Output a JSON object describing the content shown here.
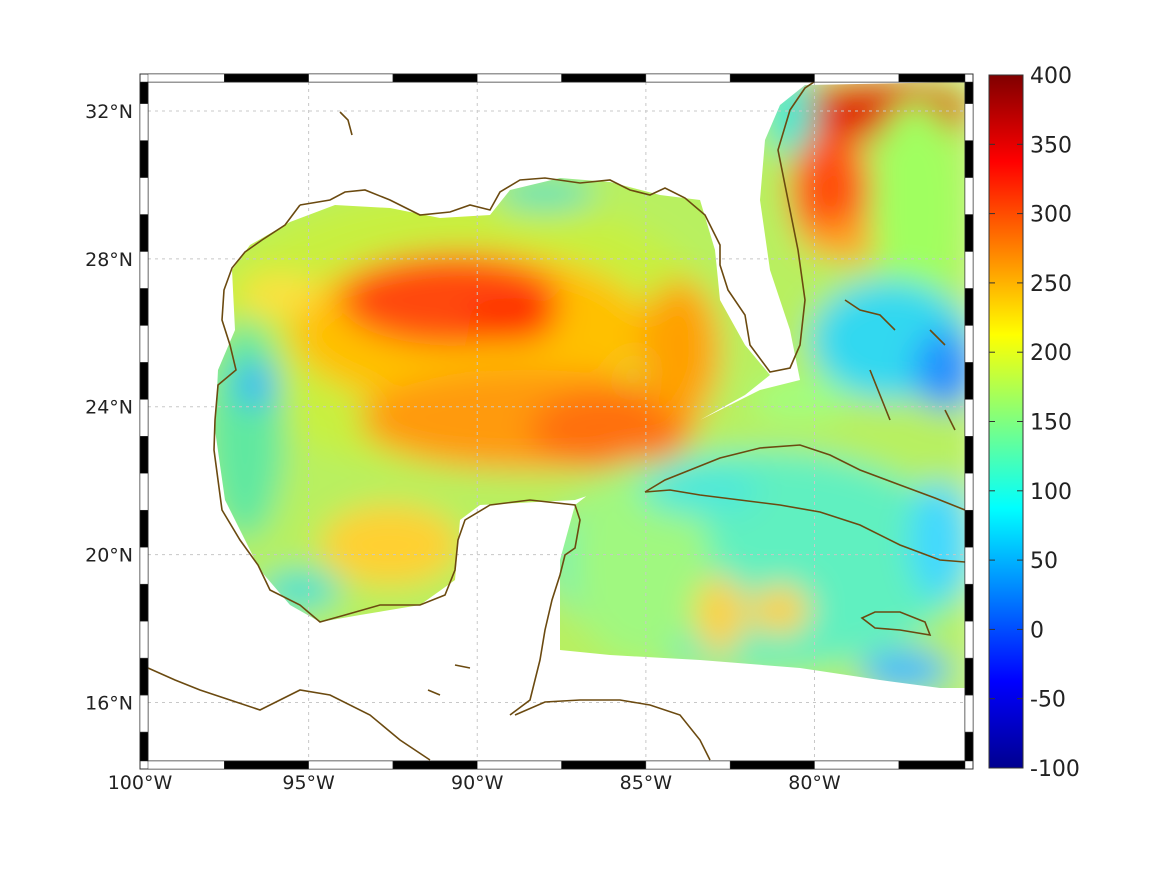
{
  "map": {
    "lon_range": [
      -100,
      -75.3
    ],
    "lat_range": [
      14.2,
      33.0
    ],
    "x_ticks": [
      {
        "lon": -100,
        "label": "100°W"
      },
      {
        "lon": -95,
        "label": "95°W"
      },
      {
        "lon": -90,
        "label": "90°W"
      },
      {
        "lon": -85,
        "label": "85°W"
      },
      {
        "lon": -80,
        "label": "80°W"
      }
    ],
    "y_ticks": [
      {
        "lat": 16,
        "label": "16°N"
      },
      {
        "lat": 20,
        "label": "20°N"
      },
      {
        "lat": 24,
        "label": "24°N"
      },
      {
        "lat": 28,
        "label": "28°N"
      },
      {
        "lat": 32,
        "label": "32°N"
      }
    ],
    "grid": true,
    "coastline_color": "#6b4a10",
    "colormap": "jet"
  },
  "colorbar": {
    "min": -100,
    "max": 400,
    "ticks": [
      "400",
      "350",
      "300",
      "250",
      "200",
      "150",
      "100",
      "50",
      "0",
      "-50",
      "-100"
    ]
  }
}
